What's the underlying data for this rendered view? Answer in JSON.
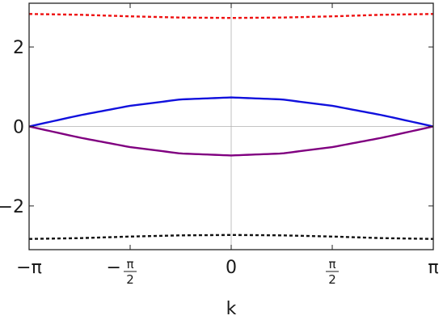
{
  "chart_data": {
    "type": "line",
    "title": "",
    "xlabel": "k",
    "ylabel": "",
    "xlim": [
      -3.14159,
      3.14159
    ],
    "ylim": [
      -3.1,
      3.1
    ],
    "grid": "center lines at x = 0 and y = 0",
    "x_ticks": [
      {
        "value": -3.14159,
        "label": "−π"
      },
      {
        "value": -1.5708,
        "label_sign": "−",
        "label_num": "π",
        "label_den": "2"
      },
      {
        "value": 0,
        "label": "0"
      },
      {
        "value": 1.5708,
        "label_num": "π",
        "label_den": "2"
      },
      {
        "value": 3.14159,
        "label": "π"
      }
    ],
    "y_ticks": [
      {
        "value": -2,
        "label": "−2"
      },
      {
        "value": 0,
        "label": "0"
      },
      {
        "value": 2,
        "label": "2"
      }
    ],
    "x": [
      -3.14159,
      -2.35619,
      -1.5708,
      -0.7854,
      0,
      0.7854,
      1.5708,
      2.35619,
      3.14159
    ],
    "series": [
      {
        "color": "#ee1111",
        "style": "dotted",
        "values": [
          2.83,
          2.81,
          2.77,
          2.74,
          2.73,
          2.74,
          2.77,
          2.81,
          2.83
        ]
      },
      {
        "color": "#1111dd",
        "style": "solid",
        "values": [
          0.0,
          0.28,
          0.52,
          0.68,
          0.73,
          0.68,
          0.52,
          0.28,
          0.0
        ]
      },
      {
        "color": "#800080",
        "style": "solid",
        "values": [
          0.0,
          -0.28,
          -0.52,
          -0.68,
          -0.73,
          -0.68,
          -0.52,
          -0.28,
          0.0
        ]
      },
      {
        "color": "#111111",
        "style": "dotted",
        "values": [
          -2.83,
          -2.81,
          -2.77,
          -2.74,
          -2.73,
          -2.74,
          -2.77,
          -2.81,
          -2.83
        ]
      }
    ]
  }
}
